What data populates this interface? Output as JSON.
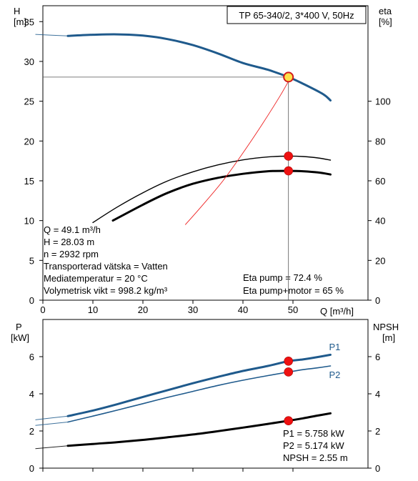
{
  "chart_data": [
    {
      "type": "line",
      "title": "TP 65-340/2, 3*400 V, 50Hz",
      "xlabel": "Q [m³/h]",
      "ylabel_left": [
        "H",
        "[m]"
      ],
      "ylabel_right": [
        "eta",
        "[%]"
      ],
      "xlim": [
        0,
        65
      ],
      "ylim_left": [
        0,
        37
      ],
      "ylim_right": [
        0,
        148
      ],
      "xticks": [
        "0",
        "10",
        "20",
        "30",
        "40",
        "50"
      ],
      "yticks_left": [
        "0",
        "5",
        "10",
        "15",
        "20",
        "25",
        "30",
        "35"
      ],
      "yticks_right": [
        "0",
        "20",
        "40",
        "60",
        "80",
        "100"
      ],
      "series": [
        {
          "axis": "left",
          "color": "#1f5a8c",
          "points": [
            [
              5,
              33.2
            ],
            [
              10,
              33.35
            ],
            [
              15,
              33.4
            ],
            [
              20,
              33.25
            ],
            [
              25,
              32.8
            ],
            [
              30,
              32.05
            ],
            [
              35,
              31.0
            ],
            [
              40,
              29.8
            ],
            [
              45,
              28.95
            ],
            [
              49.1,
              28.03
            ],
            [
              52,
              27.2
            ],
            [
              56,
              25.9
            ],
            [
              57.5,
              25.1
            ]
          ],
          "extension": [
            [
              -1.5,
              33.4
            ],
            [
              5,
              33.2
            ]
          ]
        },
        {
          "axis": "right",
          "color": "#000000",
          "points": [
            [
              10,
              39
            ],
            [
              15,
              47
            ],
            [
              20,
              54
            ],
            [
              25,
              60
            ],
            [
              30,
              64.5
            ],
            [
              35,
              68
            ],
            [
              40,
              70.5
            ],
            [
              45,
              72
            ],
            [
              49.1,
              72.4
            ],
            [
              52,
              72.2
            ],
            [
              55,
              71.5
            ],
            [
              57.5,
              70.4
            ]
          ]
        },
        {
          "axis": "right",
          "color": "#000000",
          "points": [
            [
              14,
              40
            ],
            [
              20,
              48
            ],
            [
              25,
              54
            ],
            [
              30,
              58.5
            ],
            [
              35,
              61.5
            ],
            [
              40,
              63.5
            ],
            [
              45,
              64.8
            ],
            [
              49.1,
              65
            ],
            [
              52,
              64.8
            ],
            [
              55,
              64.2
            ],
            [
              57.5,
              63.2
            ]
          ]
        },
        {
          "axis": "right",
          "color": "#ee2222",
          "points": [
            [
              28.5,
              38
            ],
            [
              32,
              48
            ],
            [
              36,
              60
            ],
            [
              40,
              74
            ],
            [
              44,
              89
            ],
            [
              47.5,
              103
            ],
            [
              49.1,
              110
            ]
          ]
        }
      ],
      "duty_point": {
        "q": 49.1,
        "h": 28.03
      },
      "markers": [
        {
          "axis": "right",
          "x": 49.1,
          "y": 72.4
        },
        {
          "axis": "right",
          "x": 49.1,
          "y": 65
        }
      ],
      "annotations_left": [
        "Q = 49.1 m³/h",
        "H = 28.03 m",
        "n = 2932 rpm",
        "Transporterad vätska = Vatten",
        "Mediatemperatur = 20 °C",
        "Volymetrisk vikt = 998.2 kg/m³"
      ],
      "annotations_right": [
        "Eta pump = 72.4 %",
        "Eta pump+motor = 65 %"
      ],
      "grid": false
    },
    {
      "type": "line",
      "xlim": [
        0,
        65
      ],
      "ylim_left": [
        0,
        8
      ],
      "ylim_right": [
        0,
        8
      ],
      "ylabel_left": [
        "P",
        "[kW]"
      ],
      "ylabel_right": [
        "NPSH",
        "[m]"
      ],
      "yticks_left": [
        "0",
        "2",
        "4",
        "6"
      ],
      "yticks_right": [
        "0",
        "2",
        "4",
        "6"
      ],
      "series": [
        {
          "name": "P1",
          "axis": "left",
          "color": "#1f5a8c",
          "points": [
            [
              5,
              2.8
            ],
            [
              10,
              3.1
            ],
            [
              15,
              3.45
            ],
            [
              20,
              3.83
            ],
            [
              25,
              4.2
            ],
            [
              30,
              4.57
            ],
            [
              35,
              4.91
            ],
            [
              40,
              5.23
            ],
            [
              45,
              5.5
            ],
            [
              49.1,
              5.758
            ],
            [
              52,
              5.85
            ],
            [
              55,
              5.98
            ],
            [
              57.5,
              6.1
            ]
          ],
          "extension": [
            [
              -1.5,
              2.6
            ],
            [
              5,
              2.8
            ]
          ]
        },
        {
          "name": "P2",
          "axis": "left",
          "color": "#1f5a8c",
          "points": [
            [
              5,
              2.48
            ],
            [
              10,
              2.8
            ],
            [
              15,
              3.13
            ],
            [
              20,
              3.47
            ],
            [
              25,
              3.81
            ],
            [
              30,
              4.13
            ],
            [
              35,
              4.45
            ],
            [
              40,
              4.73
            ],
            [
              45,
              4.98
            ],
            [
              49.1,
              5.174
            ],
            [
              52,
              5.3
            ],
            [
              55,
              5.4
            ],
            [
              57.5,
              5.5
            ]
          ],
          "extension": [
            [
              -1.5,
              2.3
            ],
            [
              5,
              2.48
            ]
          ]
        },
        {
          "axis": "right",
          "color": "#000000",
          "points": [
            [
              5,
              1.2
            ],
            [
              10,
              1.3
            ],
            [
              15,
              1.4
            ],
            [
              20,
              1.52
            ],
            [
              25,
              1.66
            ],
            [
              30,
              1.81
            ],
            [
              35,
              1.99
            ],
            [
              40,
              2.18
            ],
            [
              45,
              2.38
            ],
            [
              49.1,
              2.55
            ],
            [
              52,
              2.68
            ],
            [
              55,
              2.83
            ],
            [
              57.5,
              2.95
            ]
          ],
          "extension": [
            [
              -1.5,
              1.05
            ],
            [
              5,
              1.2
            ]
          ]
        }
      ],
      "markers": [
        {
          "axis": "left",
          "x": 49.1,
          "y": 5.758
        },
        {
          "axis": "left",
          "x": 49.1,
          "y": 5.174
        },
        {
          "axis": "right",
          "x": 49.1,
          "y": 2.55
        }
      ],
      "series_labels": [
        {
          "text": "P1",
          "x": 57.5,
          "y": 6.5
        },
        {
          "text": "P2",
          "x": 57.5,
          "y": 5.0
        }
      ],
      "annotations_right": [
        "P1 = 5.758 kW",
        "P2 = 5.174 kW",
        "NPSH = 2.55 m"
      ],
      "grid": false
    }
  ]
}
